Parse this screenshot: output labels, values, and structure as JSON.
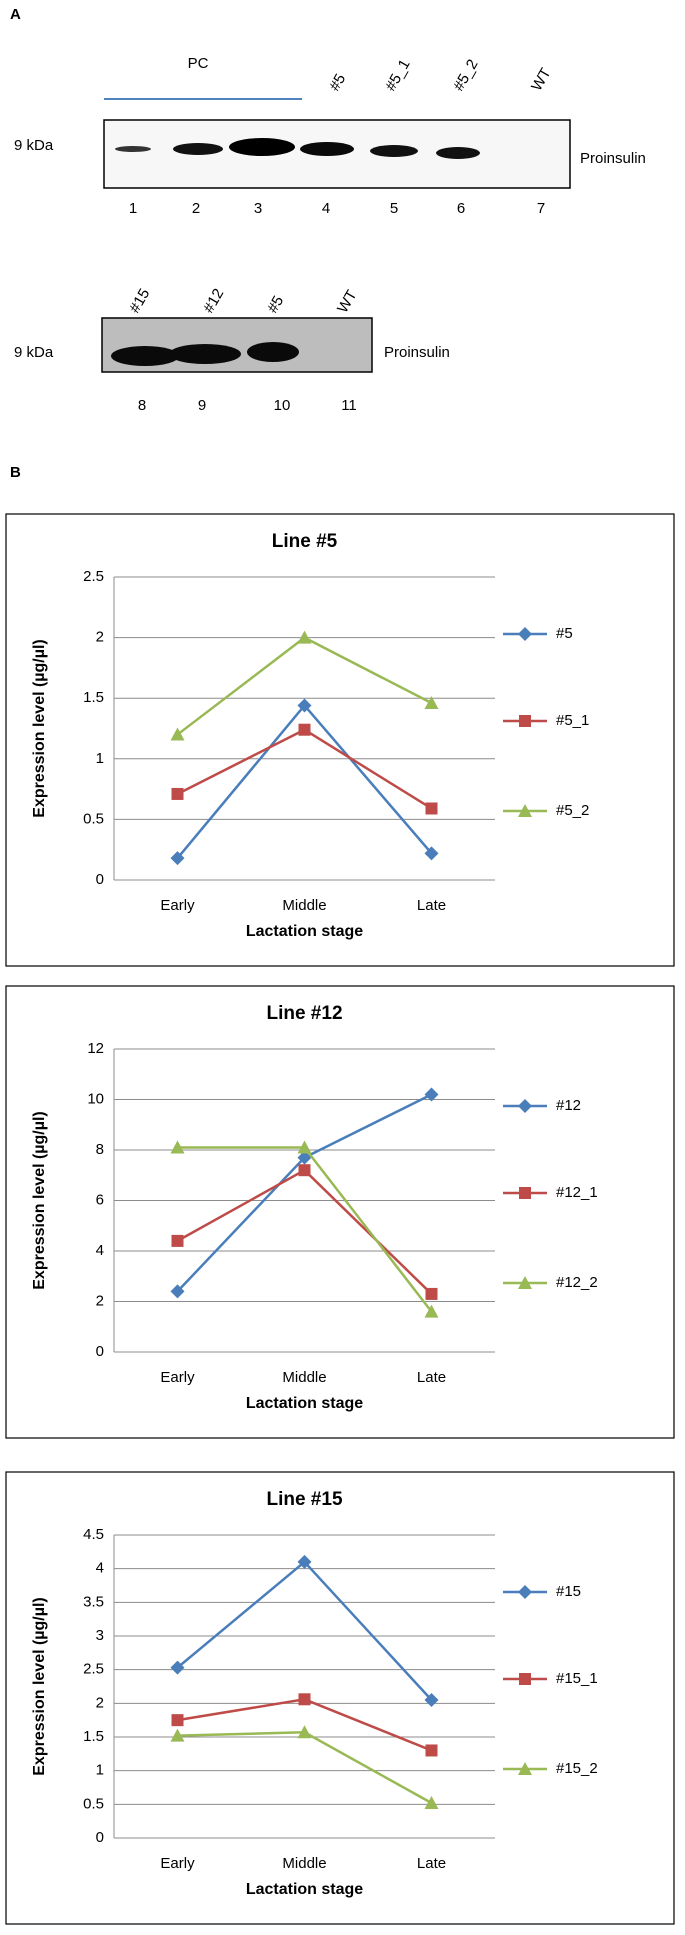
{
  "panel_a": {
    "label": "A",
    "blot1": {
      "group_label": "PC",
      "sample_labels": [
        "#5",
        "#5_1",
        "#5_2",
        "WT"
      ],
      "size_marker": "9 kDa",
      "protein": "Proinsulin",
      "lanes": [
        "1",
        "2",
        "3",
        "4",
        "5",
        "6",
        "7"
      ]
    },
    "blot2": {
      "sample_labels": [
        "#15",
        "#12",
        "#5",
        "WT"
      ],
      "size_marker": "9 kDa",
      "protein": "Proinsulin",
      "lanes": [
        "8",
        "9",
        "10",
        "11"
      ]
    }
  },
  "panel_b": {
    "label": "B"
  },
  "chart_data": [
    {
      "type": "line",
      "title": "Line #5",
      "x_label": "Lactation stage",
      "y_label": "Expression level (µg/µl)",
      "categories": [
        "Early",
        "Middle",
        "Late"
      ],
      "ylim": [
        0,
        2.5
      ],
      "yticks": [
        0,
        0.5,
        1,
        1.5,
        2,
        2.5
      ],
      "grid": true,
      "series": [
        {
          "name": "#5",
          "color": "#4a7ebb",
          "marker": "diamond",
          "values": [
            0.18,
            1.44,
            0.22
          ]
        },
        {
          "name": "#5_1",
          "color": "#be4b48",
          "marker": "square",
          "values": [
            0.71,
            1.24,
            0.59
          ]
        },
        {
          "name": "#5_2",
          "color": "#98b954",
          "marker": "triangle",
          "values": [
            1.2,
            2.0,
            1.46
          ]
        }
      ]
    },
    {
      "type": "line",
      "title": "Line #12",
      "x_label": "Lactation stage",
      "y_label": "Expression level (µg/µl)",
      "categories": [
        "Early",
        "Middle",
        "Late"
      ],
      "ylim": [
        0,
        12
      ],
      "yticks": [
        0,
        2,
        4,
        6,
        8,
        10,
        12
      ],
      "grid": true,
      "series": [
        {
          "name": "#12",
          "color": "#4a7ebb",
          "marker": "diamond",
          "values": [
            2.4,
            7.7,
            10.2
          ]
        },
        {
          "name": "#12_1",
          "color": "#be4b48",
          "marker": "square",
          "values": [
            4.4,
            7.2,
            2.3
          ]
        },
        {
          "name": "#12_2",
          "color": "#98b954",
          "marker": "triangle",
          "values": [
            8.1,
            8.1,
            1.6
          ]
        }
      ]
    },
    {
      "type": "line",
      "title": "Line #15",
      "x_label": "Lactation stage",
      "y_label": "Expression level (µg/µl)",
      "categories": [
        "Early",
        "Middle",
        "Late"
      ],
      "ylim": [
        0,
        4.5
      ],
      "yticks": [
        0,
        0.5,
        1,
        1.5,
        2,
        2.5,
        3,
        3.5,
        4,
        4.5
      ],
      "grid": true,
      "series": [
        {
          "name": "#15",
          "color": "#4a7ebb",
          "marker": "diamond",
          "values": [
            2.53,
            4.1,
            2.05
          ]
        },
        {
          "name": "#15_1",
          "color": "#be4b48",
          "marker": "square",
          "values": [
            1.75,
            2.06,
            1.3
          ]
        },
        {
          "name": "#15_2",
          "color": "#98b954",
          "marker": "triangle",
          "values": [
            1.52,
            1.57,
            0.52
          ]
        }
      ]
    }
  ]
}
